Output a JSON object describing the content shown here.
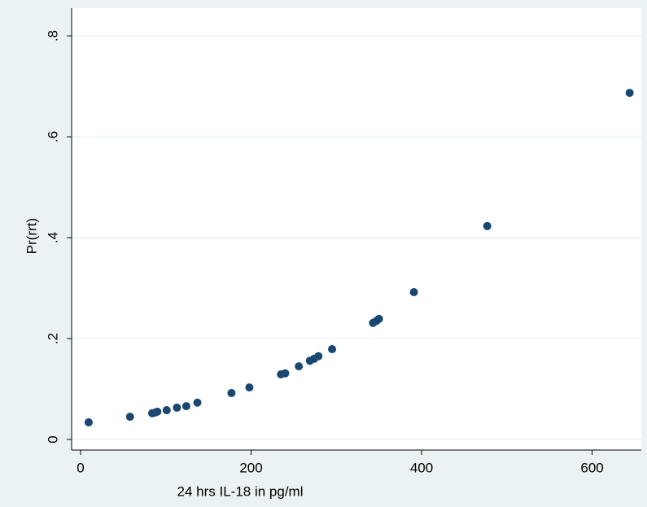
{
  "chart_data": {
    "type": "scatter",
    "x_label": "24 hrs IL-18 in pg/ml",
    "y_label": "Pr(rrt)",
    "x": [
      9.5,
      58,
      84,
      87,
      90,
      101,
      113,
      124,
      137,
      177,
      198,
      235,
      240,
      256,
      269,
      274,
      279,
      295,
      343,
      347,
      350,
      391,
      477,
      644
    ],
    "series": [
      {
        "name": "Pr(rrt)",
        "color": "#1a476f",
        "values": [
          0.034,
          0.045,
          0.052,
          0.053,
          0.055,
          0.058,
          0.063,
          0.066,
          0.073,
          0.092,
          0.103,
          0.129,
          0.131,
          0.145,
          0.156,
          0.16,
          0.165,
          0.179,
          0.231,
          0.235,
          0.239,
          0.292,
          0.423,
          0.687
        ]
      }
    ],
    "xlim": [
      -10.5,
      657.7
    ],
    "ylim": [
      -0.021,
      0.855
    ],
    "xticks": [
      0,
      200,
      400,
      600
    ],
    "yticks": [
      0,
      {
        "value": 0.2,
        "label": ".2"
      },
      {
        "value": 0.4,
        "label": ".4"
      },
      {
        "value": 0.6,
        "label": ".6"
      },
      {
        "value": 0.8,
        "label": ".8"
      }
    ],
    "grid": true
  }
}
